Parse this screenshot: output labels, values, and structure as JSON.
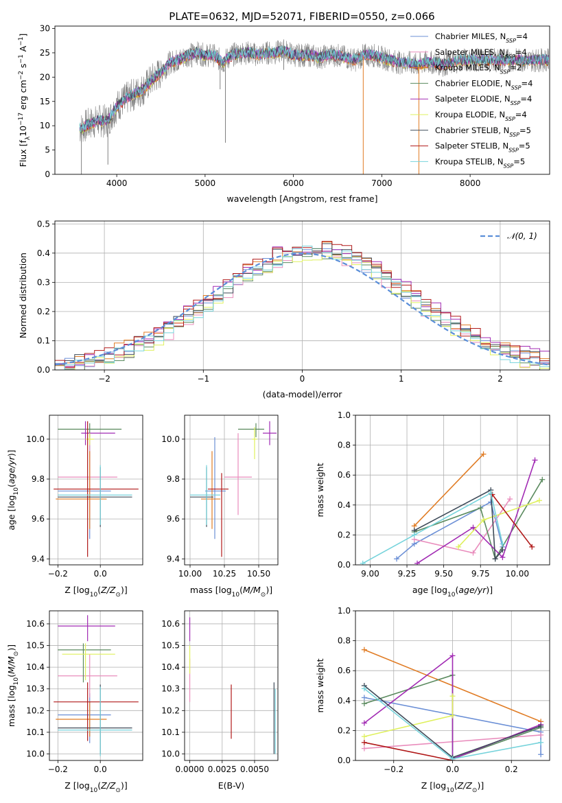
{
  "figure_title": "PLATE=0632, MJD=52071, FIBERID=0550, z=0.066",
  "colors": {
    "chabrier_miles": "#6b8fd6",
    "salpeter_miles": "#e98cbc",
    "kroupa_miles": "#e07b23",
    "chabrier_elodie": "#5a8a5e",
    "salpeter_elodie": "#a12ab3",
    "kroupa_elodie": "#dff05c",
    "chabrier_stelib": "#3e4a58",
    "salpeter_stelib": "#b01818",
    "kroupa_stelib": "#76d3db",
    "data": "#808080",
    "normal": "#5b8fd9"
  },
  "chart_data": [
    {
      "id": "spectrum",
      "type": "line",
      "title": "PLATE=0632, MJD=52071, FIBERID=0550, z=0.066",
      "xlabel": "wavelength [Angstrom, rest frame]",
      "ylabel": "Flux [fλ10⁻¹⁷ erg cm⁻² s⁻¹ A⁻¹]",
      "xlim": [
        3300,
        8900
      ],
      "ylim": [
        0,
        30.5
      ],
      "xticks": [
        4000,
        5000,
        6000,
        7000,
        8000
      ],
      "yticks": [
        0,
        5,
        10,
        15,
        20,
        25,
        30
      ],
      "legend_placement": "upper right",
      "legend": [
        {
          "label": "Chabrier MILES, N",
          "sub": "SSP",
          "tail": "=4"
        },
        {
          "label": "Salpeter MILES, N",
          "sub": "SSP",
          "tail": "=4"
        },
        {
          "label": "Kroupa MILES, N",
          "sub": "SSP",
          "tail": "=2"
        },
        {
          "label": "Chabrier ELODIE, N",
          "sub": "SSP",
          "tail": "=4"
        },
        {
          "label": "Salpeter ELODIE, N",
          "sub": "SSP",
          "tail": "=4"
        },
        {
          "label": "Kroupa ELODIE, N",
          "sub": "SSP",
          "tail": "=4"
        },
        {
          "label": "Chabrier STELIB, N",
          "sub": "SSP",
          "tail": "=5"
        },
        {
          "label": "Salpeter STELIB, N",
          "sub": "SSP",
          "tail": "=5"
        },
        {
          "label": "Kroupa STELIB, N",
          "sub": "SSP",
          "tail": "=5"
        }
      ],
      "continuum_wavelength": [
        3600,
        3700,
        3800,
        3900,
        4000,
        4100,
        4200,
        4300,
        4400,
        4500,
        4600,
        4700,
        4800,
        4900,
        5000,
        5100,
        5200,
        5300,
        5400,
        5500,
        5600,
        5700,
        5800,
        5900,
        6000,
        6100,
        6200,
        6300,
        6400,
        6500,
        6600,
        6700,
        6800,
        6900,
        7000,
        7100,
        7200,
        7300,
        7400,
        7500,
        7600,
        7700,
        7800,
        7900,
        8000,
        8100,
        8200,
        8300,
        8400,
        8500,
        8600,
        8700,
        8800,
        8900
      ],
      "continuum_flux": [
        9.5,
        10.5,
        11,
        11,
        14,
        15.5,
        16.5,
        17.5,
        19.5,
        21,
        23,
        23.5,
        24.5,
        25,
        24.5,
        24.5,
        23,
        24.5,
        25,
        25,
        24.5,
        25,
        25,
        25.5,
        24.5,
        24.5,
        24.5,
        24,
        24.5,
        24.5,
        24,
        23.5,
        24.5,
        24.5,
        24,
        23.5,
        23,
        23,
        22.5,
        23,
        23,
        22.5,
        23,
        23.5,
        23.5,
        23.5,
        23.5,
        23.5,
        23.5,
        23.5,
        23.5,
        23.5,
        23.5,
        23.5
      ],
      "absorption_features": [
        {
          "x": 3600,
          "y": 0
        },
        {
          "x": 3900,
          "y": 2
        },
        {
          "x": 4090,
          "y": 13.5
        },
        {
          "x": 4300,
          "y": 14.5
        },
        {
          "x": 4850,
          "y": 22
        },
        {
          "x": 5170,
          "y": 17.5
        },
        {
          "x": 5230,
          "y": 6.5
        },
        {
          "x": 5890,
          "y": 21.5
        },
        {
          "x": 6790,
          "y": 0
        },
        {
          "x": 7420,
          "y": 0
        }
      ]
    },
    {
      "id": "residual_hist",
      "type": "line",
      "xlabel": "(data-model)/error",
      "ylabel": "Normed distribution",
      "xlim": [
        -2.5,
        2.5
      ],
      "ylim": [
        0,
        0.51
      ],
      "xticks": [
        -2,
        -1,
        0,
        1,
        2
      ],
      "yticks": [
        0.0,
        0.1,
        0.2,
        0.3,
        0.4,
        0.5
      ],
      "grid": true,
      "legend_placement": "upper right",
      "normal_label": "𝒩(0, 1)",
      "bin_width": 0.1,
      "bin_start": -2.5,
      "model_offsets": [
        0,
        -0.012,
        0.01,
        -0.008,
        0.014,
        -0.01,
        0.006,
        0.012,
        -0.006
      ]
    },
    {
      "id": "age_vs_Z",
      "type": "scatter",
      "xlabel": "Z [log₁₀(Z/Z⊙)]",
      "ylabel": "age  [log₁₀(age/yr)]",
      "xlim": [
        -0.24,
        0.2
      ],
      "ylim": [
        9.37,
        10.12
      ],
      "xticks": [
        -0.2,
        0.0
      ],
      "yticks": [
        9.4,
        9.6,
        9.8,
        10.0
      ],
      "grid": true,
      "points": [
        {
          "model": "chabrier_miles",
          "x": -0.05,
          "xerr": [
            0.15,
            0.1
          ],
          "y": 9.74,
          "yerr": [
            0.24,
            0.27
          ]
        },
        {
          "model": "salpeter_miles",
          "x": -0.05,
          "xerr": [
            0.15,
            0.13
          ],
          "y": 9.81,
          "yerr": [
            0.19,
            0.22
          ]
        },
        {
          "model": "kroupa_miles",
          "x": -0.05,
          "xerr": [
            0.16,
            0.08
          ],
          "y": 9.7,
          "yerr": [
            0.15,
            0.24
          ]
        },
        {
          "model": "chabrier_elodie",
          "x": -0.05,
          "xerr": [
            0.15,
            0.15
          ],
          "y": 10.05,
          "yerr": [
            0.04,
            0.03
          ]
        },
        {
          "model": "salpeter_elodie",
          "x": -0.07,
          "xerr": [
            0.02,
            0.14
          ],
          "y": 10.03,
          "yerr": [
            0.06,
            0.06
          ]
        },
        {
          "model": "kroupa_elodie",
          "x": -0.05,
          "xerr": [
            0.02,
            0.02
          ],
          "y": 10.0,
          "yerr": [
            0.03,
            0.03
          ]
        },
        {
          "model": "chabrier_stelib",
          "x": 0.0,
          "xerr": [
            0.2,
            0.15
          ],
          "y": 9.71,
          "yerr": [
            0.15,
            0.15
          ]
        },
        {
          "model": "salpeter_stelib",
          "x": -0.06,
          "xerr": [
            0.16,
            0.24
          ],
          "y": 9.75,
          "yerr": [
            0.34,
            0.34
          ]
        },
        {
          "model": "kroupa_stelib",
          "x": 0.0,
          "xerr": [
            0.2,
            0.15
          ],
          "y": 9.72,
          "yerr": [
            0.15,
            0.15
          ]
        }
      ]
    },
    {
      "id": "age_vs_mass",
      "type": "scatter",
      "xlabel": "mass [log₁₀(M/M⊙)]",
      "xlim": [
        9.96,
        10.64
      ],
      "ylim": [
        9.37,
        10.12
      ],
      "xticks": [
        10.0,
        10.25,
        10.5
      ],
      "yticks": [
        9.4,
        9.6,
        9.8,
        10.0
      ],
      "grid": true,
      "points": [
        {
          "model": "chabrier_miles",
          "x": 10.18,
          "xerr": [
            0.07,
            0.08
          ],
          "y": 9.74,
          "yerr": [
            0.24,
            0.27
          ]
        },
        {
          "model": "salpeter_miles",
          "x": 10.35,
          "xerr": [
            0.1,
            0.1
          ],
          "y": 9.81,
          "yerr": [
            0.19,
            0.22
          ]
        },
        {
          "model": "kroupa_miles",
          "x": 10.16,
          "xerr": [
            0.08,
            0.06
          ],
          "y": 9.7,
          "yerr": [
            0.15,
            0.24
          ]
        },
        {
          "model": "chabrier_elodie",
          "x": 10.48,
          "xerr": [
            0.13,
            0.06
          ],
          "y": 10.05,
          "yerr": [
            0.04,
            0.03
          ]
        },
        {
          "model": "salpeter_elodie",
          "x": 10.58,
          "xerr": [
            0.05,
            0.05
          ],
          "y": 10.03,
          "yerr": [
            0.06,
            0.06
          ]
        },
        {
          "model": "kroupa_elodie",
          "x": 10.47,
          "xerr": [
            0.02,
            0.02
          ],
          "y": 10.0,
          "yerr": [
            0.1,
            0.06
          ]
        },
        {
          "model": "chabrier_stelib",
          "x": 10.12,
          "xerr": [
            0.12,
            0.05
          ],
          "y": 9.71,
          "yerr": [
            0.15,
            0.15
          ]
        },
        {
          "model": "salpeter_stelib",
          "x": 10.23,
          "xerr": [
            0.1,
            0.05
          ],
          "y": 9.75,
          "yerr": [
            0.34,
            0.08
          ]
        },
        {
          "model": "kroupa_stelib",
          "x": 10.12,
          "xerr": [
            0.12,
            0.1
          ],
          "y": 9.72,
          "yerr": [
            0.15,
            0.15
          ]
        }
      ]
    },
    {
      "id": "weight_vs_age",
      "type": "line",
      "xlabel": "age  [log₁₀(age/yr)]",
      "ylabel": "mass weight",
      "xlim": [
        8.9,
        10.22
      ],
      "ylim": [
        0,
        1.0
      ],
      "xticks": [
        9.0,
        9.25,
        9.5,
        9.75,
        10.0
      ],
      "yticks": [
        0.0,
        0.2,
        0.4,
        0.6,
        0.8,
        1.0
      ],
      "grid": true,
      "series": [
        {
          "model": "chabrier_miles",
          "x": [
            9.18,
            9.3,
            9.82,
            9.9
          ],
          "y": [
            0.04,
            0.14,
            0.42,
            0.12
          ]
        },
        {
          "model": "salpeter_miles",
          "x": [
            9.3,
            9.7,
            9.95
          ],
          "y": [
            0.17,
            0.08,
            0.44
          ]
        },
        {
          "model": "kroupa_miles",
          "x": [
            9.3,
            9.77
          ],
          "y": [
            0.26,
            0.74
          ]
        },
        {
          "model": "chabrier_elodie",
          "x": [
            9.3,
            9.75,
            9.85,
            10.17
          ],
          "y": [
            0.22,
            0.38,
            0.04,
            0.57
          ]
        },
        {
          "model": "salpeter_elodie",
          "x": [
            9.32,
            9.7,
            9.9,
            10.12
          ],
          "y": [
            0.01,
            0.25,
            0.05,
            0.7
          ]
        },
        {
          "model": "kroupa_elodie",
          "x": [
            9.6,
            9.77,
            10.15
          ],
          "y": [
            0.12,
            0.3,
            0.43
          ]
        },
        {
          "model": "chabrier_stelib",
          "x": [
            9.3,
            9.82,
            9.85,
            9.9
          ],
          "y": [
            0.23,
            0.5,
            0.04,
            0.1
          ]
        },
        {
          "model": "salpeter_stelib",
          "x": [
            9.83,
            10.1
          ],
          "y": [
            0.47,
            0.12
          ]
        },
        {
          "model": "kroupa_stelib",
          "x": [
            8.95,
            9.3,
            9.82,
            9.9
          ],
          "y": [
            0.01,
            0.2,
            0.48,
            0.14
          ]
        }
      ]
    },
    {
      "id": "mass_vs_Z",
      "type": "scatter",
      "xlabel": "Z [log₁₀(Z/Z⊙)]",
      "ylabel": "mass [log₁₀(M/M⊙)]",
      "xlim": [
        -0.24,
        0.2
      ],
      "ylim": [
        9.97,
        10.66
      ],
      "xticks": [
        -0.2,
        0.0
      ],
      "yticks": [
        10.0,
        10.1,
        10.2,
        10.3,
        10.4,
        10.5,
        10.6
      ],
      "grid": true,
      "points": [
        {
          "model": "chabrier_miles",
          "x": -0.05,
          "xerr": [
            0.15,
            0.1
          ],
          "y": 10.18,
          "yerr": [
            0.13,
            0.1
          ]
        },
        {
          "model": "salpeter_miles",
          "x": -0.05,
          "xerr": [
            0.15,
            0.13
          ],
          "y": 10.36,
          "yerr": [
            0.1,
            0.1
          ]
        },
        {
          "model": "kroupa_miles",
          "x": -0.05,
          "xerr": [
            0.16,
            0.08
          ],
          "y": 10.16,
          "yerr": [
            0.08,
            0.08
          ]
        },
        {
          "model": "chabrier_elodie",
          "x": -0.08,
          "xerr": [
            0.12,
            0.13
          ],
          "y": 10.48,
          "yerr": [
            0.15,
            0.03
          ]
        },
        {
          "model": "salpeter_elodie",
          "x": -0.06,
          "xerr": [
            0.14,
            0.13
          ],
          "y": 10.59,
          "yerr": [
            0.07,
            0.05
          ]
        },
        {
          "model": "kroupa_elodie",
          "x": -0.07,
          "xerr": [
            0.11,
            0.14
          ],
          "y": 10.46,
          "yerr": [
            0.12,
            0.05
          ]
        },
        {
          "model": "chabrier_stelib",
          "x": 0.0,
          "xerr": [
            0.2,
            0.15
          ],
          "y": 10.12,
          "yerr": [
            0.12,
            0.2
          ]
        },
        {
          "model": "salpeter_stelib",
          "x": -0.06,
          "xerr": [
            0.16,
            0.24
          ],
          "y": 10.24,
          "yerr": [
            0.18,
            0.09
          ]
        },
        {
          "model": "kroupa_stelib",
          "x": 0.0,
          "xerr": [
            0.2,
            0.15
          ],
          "y": 10.11,
          "yerr": [
            0.12,
            0.2
          ]
        }
      ]
    },
    {
      "id": "mass_vs_ebv",
      "type": "scatter",
      "xlabel": "E(B-V)",
      "xlim": [
        -0.0004,
        0.0068
      ],
      "ylim": [
        9.97,
        10.66
      ],
      "xticks": [
        0.0,
        0.0025,
        0.005
      ],
      "xticklabels": [
        "0.0000",
        "0.0025",
        "0.0050"
      ],
      "yticks": [
        10.0,
        10.1,
        10.2,
        10.3,
        10.4,
        10.5,
        10.6
      ],
      "grid": true,
      "points": [
        {
          "model": "salpeter_elodie",
          "x": 0.0,
          "y": 10.59,
          "yerr": [
            0.07,
            0.04
          ]
        },
        {
          "model": "salpeter_miles",
          "x": 0.0,
          "y": 10.36,
          "yerr": [
            0.12,
            0.08
          ]
        },
        {
          "model": "kroupa_elodie",
          "x": 0.0,
          "y": 10.46,
          "yerr": [
            0.09,
            0.04
          ]
        },
        {
          "model": "salpeter_stelib",
          "x": 0.0032,
          "y": 10.2,
          "yerr": [
            0.13,
            0.12
          ]
        },
        {
          "model": "chabrier_stelib",
          "x": 0.0065,
          "y": 10.12,
          "yerr": [
            0.12,
            0.21
          ]
        },
        {
          "model": "kroupa_stelib",
          "x": 0.0066,
          "y": 10.11,
          "yerr": [
            0.11,
            0.19
          ]
        }
      ]
    },
    {
      "id": "weight_vs_Z",
      "type": "line",
      "xlabel": "Z [log₁₀(Z/Z⊙)]",
      "ylabel": "mass weight",
      "xlim": [
        -0.33,
        0.33
      ],
      "ylim": [
        0,
        1.0
      ],
      "xticks": [
        -0.2,
        0.0,
        0.2
      ],
      "yticks": [
        0.0,
        0.2,
        0.4,
        0.6,
        0.8,
        1.0
      ],
      "grid": true,
      "series": [
        {
          "model": "chabrier_miles",
          "x": [
            -0.3,
            0.3,
            0.3
          ],
          "y": [
            0.42,
            0.19,
            0.04
          ]
        },
        {
          "model": "salpeter_miles",
          "x": [
            -0.3,
            0.3
          ],
          "y": [
            0.08,
            0.17
          ]
        },
        {
          "model": "kroupa_miles",
          "x": [
            -0.3,
            0.3
          ],
          "y": [
            0.74,
            0.26
          ]
        },
        {
          "model": "chabrier_elodie",
          "x": [
            -0.3,
            0.0,
            0.0,
            0.3
          ],
          "y": [
            0.38,
            0.57,
            0.01,
            0.22
          ]
        },
        {
          "model": "salpeter_elodie",
          "x": [
            -0.3,
            0.0,
            0.0,
            0.3
          ],
          "y": [
            0.25,
            0.7,
            0.01,
            0.24
          ]
        },
        {
          "model": "kroupa_elodie",
          "x": [
            -0.3,
            0.0,
            0.0
          ],
          "y": [
            0.16,
            0.3,
            0.43
          ]
        },
        {
          "model": "chabrier_stelib",
          "x": [
            -0.3,
            0.0,
            0.3
          ],
          "y": [
            0.5,
            0.02,
            0.23
          ]
        },
        {
          "model": "salpeter_stelib",
          "x": [
            -0.3,
            0.0
          ],
          "y": [
            0.12,
            0.0
          ]
        },
        {
          "model": "kroupa_stelib",
          "x": [
            -0.3,
            0.0,
            0.3
          ],
          "y": [
            0.48,
            0.01,
            0.12
          ]
        }
      ]
    }
  ]
}
